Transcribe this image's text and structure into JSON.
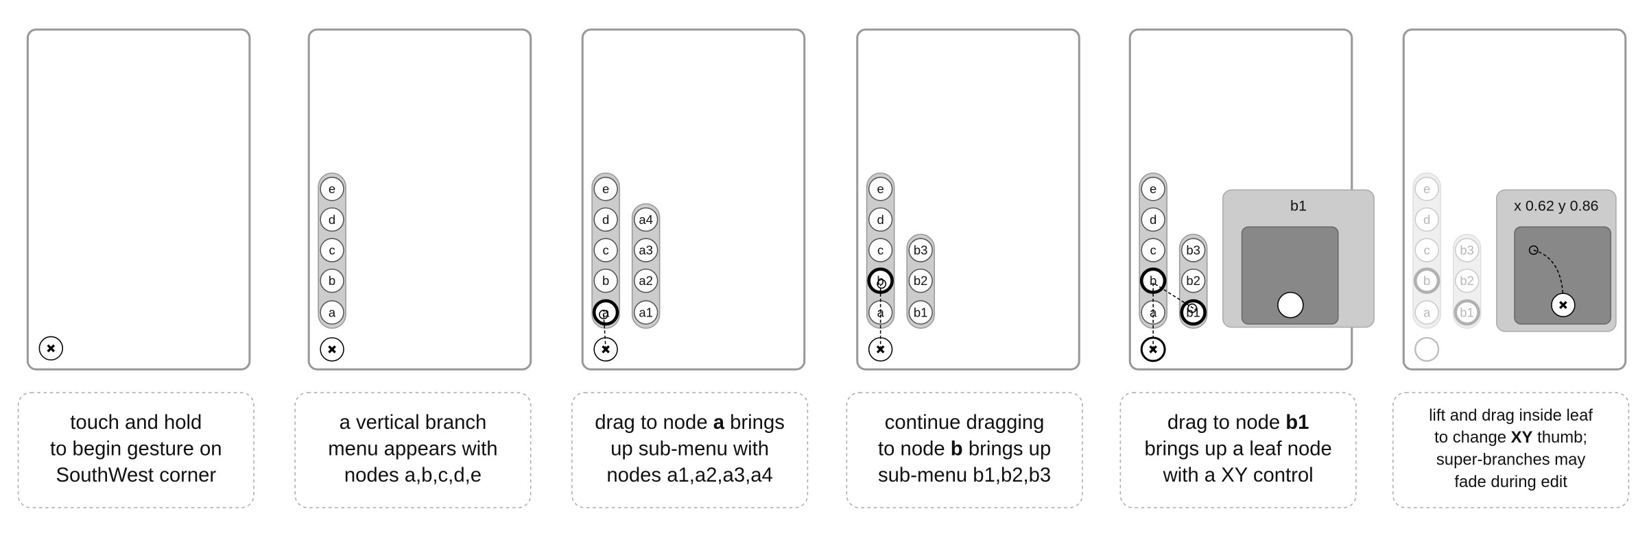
{
  "panels": [
    {
      "caption": [
        [
          {
            "text": "touch and hold"
          }
        ],
        [
          {
            "text": "to begin gesture on"
          }
        ],
        [
          {
            "text": "SouthWest corner"
          }
        ]
      ]
    },
    {
      "branch": [
        "e",
        "d",
        "c",
        "b",
        "a"
      ],
      "caption": [
        [
          {
            "text": "a vertical branch"
          }
        ],
        [
          {
            "text": "menu appears with"
          }
        ],
        [
          {
            "text": "nodes a,b,c,d,e"
          }
        ]
      ]
    },
    {
      "branch": [
        "e",
        "d",
        "c",
        "b",
        "a"
      ],
      "submenu": [
        "a4",
        "a3",
        "a2",
        "a1"
      ],
      "caption": [
        [
          {
            "text": "drag to node "
          },
          {
            "text": "a",
            "bold": true
          },
          {
            "text": " brings"
          }
        ],
        [
          {
            "text": "up sub-menu with"
          }
        ],
        [
          {
            "text": "nodes a1,a2,a3,a4"
          }
        ]
      ]
    },
    {
      "branch": [
        "e",
        "d",
        "c",
        "b",
        "a"
      ],
      "submenu": [
        "b3",
        "b2",
        "b1"
      ],
      "caption": [
        [
          {
            "text": "continue dragging"
          }
        ],
        [
          {
            "text": "to node "
          },
          {
            "text": "b",
            "bold": true
          },
          {
            "text": " brings up"
          }
        ],
        [
          {
            "text": "sub-menu b1,b2,b3"
          }
        ]
      ]
    },
    {
      "branch": [
        "e",
        "d",
        "c",
        "b",
        "a"
      ],
      "submenu": [
        "b3",
        "b2",
        "b1"
      ],
      "leaf": "b1",
      "caption": [
        [
          {
            "text": "drag to node "
          },
          {
            "text": "b1",
            "bold": true
          }
        ],
        [
          {
            "text": "brings up a leaf node"
          }
        ],
        [
          {
            "text": "with a XY control"
          }
        ]
      ]
    },
    {
      "branch": [
        "e",
        "d",
        "c",
        "b",
        "a"
      ],
      "submenu": [
        "b3",
        "b2",
        "b1"
      ],
      "leaf": "x 0.62 y 0.86",
      "caption": [
        [
          {
            "text": "lift and drag inside leaf"
          }
        ],
        [
          {
            "text": "to change "
          },
          {
            "text": "XY",
            "bold": true
          },
          {
            "text": " thumb;"
          }
        ],
        [
          {
            "text": "super-branches may"
          }
        ],
        [
          {
            "text": "fade during edit"
          }
        ]
      ]
    }
  ]
}
